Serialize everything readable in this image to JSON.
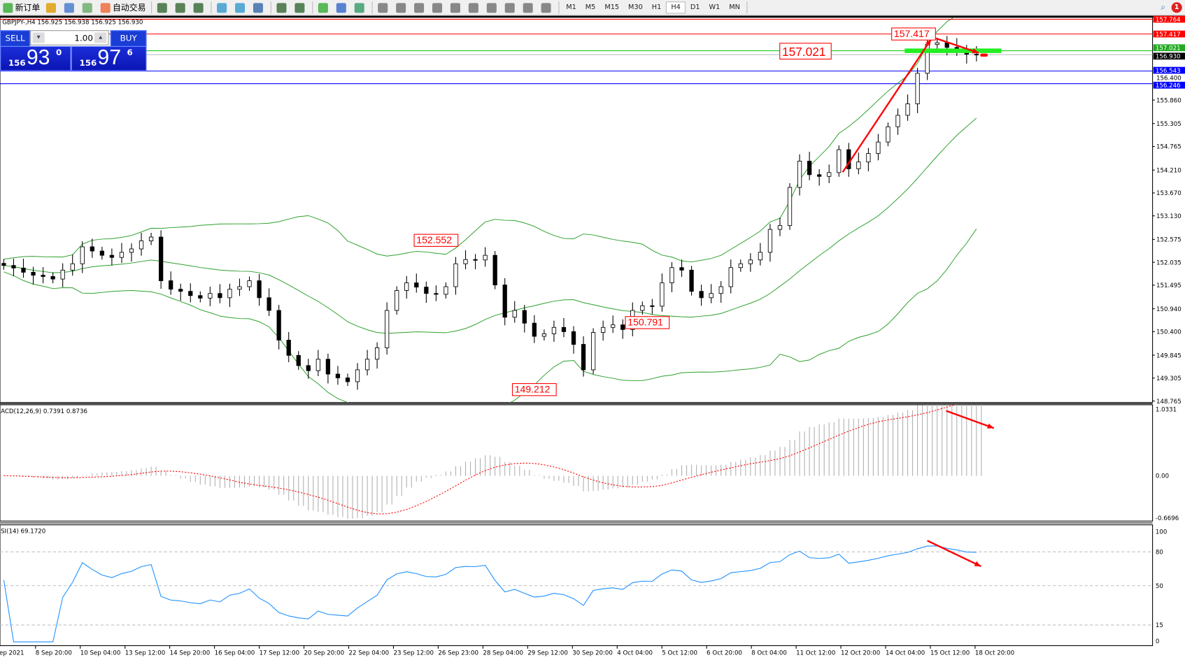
{
  "toolbar": {
    "new_order": "新订单",
    "auto_trading": "自动交易",
    "icons": [
      "new-order-icon",
      "gold-icon",
      "market-watch-icon",
      "signal-icon",
      "auto-trading-icon",
      "bar-chart-icon",
      "candle-chart-icon",
      "line-chart-icon",
      "zoom-in-icon",
      "zoom-out-icon",
      "tile-windows-icon",
      "chart-shift-icon",
      "auto-scroll-icon",
      "indicators-icon",
      "periods-icon",
      "templates-icon",
      "cursor-icon",
      "crosshair-icon",
      "vertical-line-icon",
      "horizontal-line-icon",
      "trendline-icon",
      "channel-icon",
      "fibonacci-icon",
      "text-icon",
      "text-label-icon",
      "arrows-icon"
    ],
    "timeframes": [
      "M1",
      "M5",
      "M15",
      "M30",
      "H1",
      "H4",
      "D1",
      "W1",
      "MN"
    ],
    "active_timeframe": "H4",
    "notification_count": "1"
  },
  "chart": {
    "header": "GBPJPY-,H4  156.925 156.938 156.925 156.930",
    "one_click": {
      "sell": "SELL",
      "buy": "BUY",
      "lot": "1.00",
      "sell_small": "156",
      "sell_big": "93",
      "sell_tiny": "0",
      "buy_small": "156",
      "buy_big": "97",
      "buy_tiny": "6"
    },
    "colors": {
      "bull_band": "#2ca02c",
      "red": "#ff0000",
      "green_line": "#00c000",
      "blue_line": "#0000ff",
      "macd_signal": "#ff0000",
      "rsi": "#1e90ff",
      "up_candle": "#ffffff",
      "down_candle": "#000000"
    }
  },
  "chart_data": [
    {
      "type": "candlestick",
      "ylim": [
        148.765,
        157.764
      ],
      "closes": [
        151.96,
        151.9,
        151.8,
        151.73,
        151.7,
        151.64,
        151.85,
        152.0,
        152.4,
        152.3,
        152.2,
        152.15,
        152.27,
        152.35,
        152.54,
        152.63,
        151.6,
        151.4,
        151.35,
        151.25,
        151.19,
        151.3,
        151.2,
        151.4,
        151.46,
        151.6,
        151.2,
        150.9,
        150.2,
        149.84,
        149.6,
        149.48,
        149.75,
        149.4,
        149.31,
        149.22,
        149.5,
        149.75,
        150.02,
        150.9,
        151.37,
        151.55,
        151.45,
        151.3,
        151.28,
        151.46,
        152.0,
        152.1,
        152.09,
        152.2,
        151.5,
        150.74,
        150.9,
        150.6,
        150.29,
        150.35,
        150.5,
        150.4,
        150.1,
        149.5,
        150.38,
        150.5,
        150.56,
        150.45,
        150.9,
        151.01,
        151.0,
        151.55,
        151.91,
        151.85,
        151.35,
        151.2,
        151.3,
        151.46,
        151.91,
        152.0,
        152.09,
        152.27,
        152.81,
        152.9,
        153.8,
        154.42,
        154.1,
        154.06,
        154.15,
        154.69,
        154.24,
        154.4,
        154.6,
        154.87,
        155.23,
        155.5,
        155.77,
        156.49,
        157.17,
        157.21,
        157.1,
        157.03,
        156.94,
        156.93
      ],
      "indicator": "Bollinger Bands",
      "y_ticks": [
        "155.860",
        "155.305",
        "154.765",
        "154.210",
        "153.670",
        "153.130",
        "152.575",
        "152.035",
        "151.495",
        "150.940",
        "150.400",
        "149.845",
        "149.305",
        "148.765"
      ],
      "price_lines": [
        {
          "price": 157.764,
          "label": "157.764",
          "color": "#ff0000"
        },
        {
          "price": 157.417,
          "label": "157.417",
          "color": "#ff0000"
        },
        {
          "price": 157.021,
          "label": "157.021",
          "color": "#00c000"
        },
        {
          "price": 156.93,
          "label": "156.930",
          "color": "#c0c0c0"
        },
        {
          "price": 156.543,
          "label": "156.543",
          "color": "#0000ff"
        },
        {
          "price": 156.246,
          "label": "156.246",
          "color": "#0000ff"
        }
      ],
      "extra_tick": "156.400",
      "annotations": [
        {
          "label": "157.417",
          "price": 157.417,
          "index": 92.6
        },
        {
          "label": "157.021",
          "price": 157.021,
          "index": 81.6
        },
        {
          "label": "152.552",
          "price": 152.552,
          "index": 44
        },
        {
          "label": "150.791",
          "price": 150.791,
          "index": 65.5
        },
        {
          "label": "149.212",
          "price": 149.212,
          "index": 54
        }
      ],
      "x_labels": [
        "Sep 2021",
        "8 Sep 20:00",
        "10 Sep 04:00",
        "13 Sep 12:00",
        "14 Sep 20:00",
        "16 Sep 04:00",
        "17 Sep 12:00",
        "20 Sep 20:00",
        "22 Sep 04:00",
        "23 Sep 12:00",
        "26 Sep 23:00",
        "28 Sep 04:00",
        "29 Sep 12:00",
        "30 Sep 20:00",
        "4 Oct 04:00",
        "5 Oct 12:00",
        "6 Oct 20:00",
        "8 Oct 04:00",
        "11 Oct 12:00",
        "12 Oct 20:00",
        "14 Oct 04:00",
        "15 Oct 12:00",
        "18 Oct 20:00"
      ]
    },
    {
      "type": "bar+line",
      "title": "ACD(12,26,9) 0.7391 0.8736",
      "ylim": [
        -0.6696,
        1.0331
      ],
      "y_ticks": [
        "1.0331",
        "0.00",
        "-0.6696"
      ]
    },
    {
      "type": "line",
      "title": "SI(14) 69.1720",
      "ylim": [
        0,
        100
      ],
      "y_ticks": [
        "100",
        "80",
        "50",
        "15",
        "0"
      ],
      "levels": [
        80,
        50,
        15
      ]
    }
  ]
}
